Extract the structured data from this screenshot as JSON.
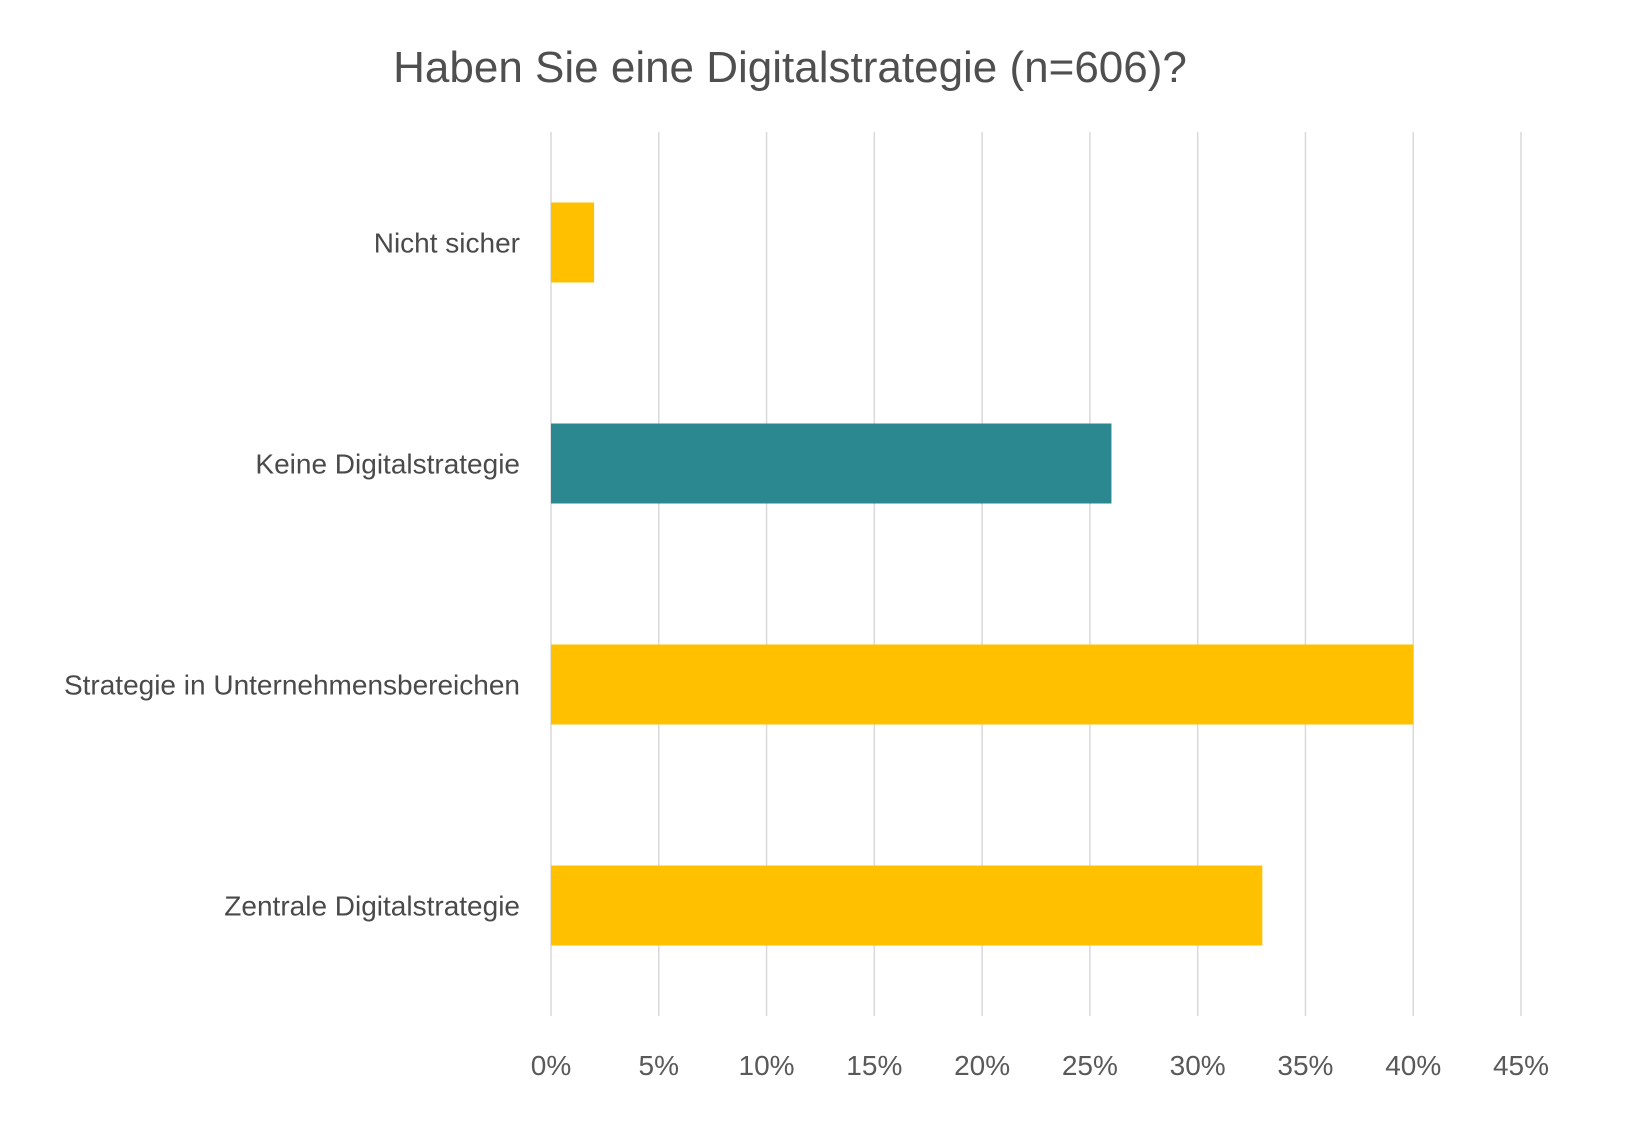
{
  "chart_data": {
    "type": "bar",
    "orientation": "horizontal",
    "title": "Haben Sie eine Digitalstrategie (n=606)?",
    "categories": [
      "Nicht sicher",
      "Keine Digitalstrategie",
      "Strategie in Unternehmensbereichen",
      "Zentrale Digitalstrategie"
    ],
    "values": [
      2,
      26,
      40,
      33
    ],
    "bar_colors": [
      "#FFC000",
      "#2B8890",
      "#FFC000",
      "#FFC000"
    ],
    "xlim": [
      0,
      45
    ],
    "xticks": [
      0,
      5,
      10,
      15,
      20,
      25,
      30,
      35,
      40,
      45
    ],
    "xtick_labels": [
      "0%",
      "5%",
      "10%",
      "15%",
      "20%",
      "25%",
      "30%",
      "35%",
      "40%",
      "45%"
    ],
    "xlabel": "",
    "ylabel": "",
    "grid": "vertical",
    "legend": "none"
  }
}
